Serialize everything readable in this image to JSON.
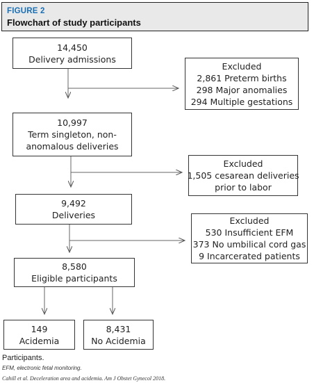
{
  "figure": {
    "label": "FIGURE 2",
    "title": "Flowchart of study participants"
  },
  "boxes": {
    "admissions": [
      "14,450",
      "Delivery admissions"
    ],
    "excluded1": [
      "Excluded",
      "2,861 Preterm births",
      "298 Major anomalies",
      "294 Multiple gestations"
    ],
    "term": [
      "10,997",
      "Term singleton, non-",
      "anomalous deliveries"
    ],
    "excluded2": [
      "Excluded",
      "1,505 cesarean deliveries",
      "prior to labor"
    ],
    "deliveries": [
      "9,492",
      "Deliveries"
    ],
    "excluded3": [
      "Excluded",
      "530 Insufficient EFM",
      "373 No umbilical cord gas",
      "9 Incarcerated patients"
    ],
    "eligible": [
      "8,580",
      "Eligible participants"
    ],
    "acidemia": [
      "149",
      "Acidemia"
    ],
    "no_acidemia": [
      "8,431",
      "No Acidemia"
    ]
  },
  "caption": {
    "title": "Participants.",
    "abbreviation": "EFM, electronic fetal monitoring.",
    "citation": "Cahill et al. Deceleration area and acidemia. Am J Obstet Gynecol 2018."
  }
}
